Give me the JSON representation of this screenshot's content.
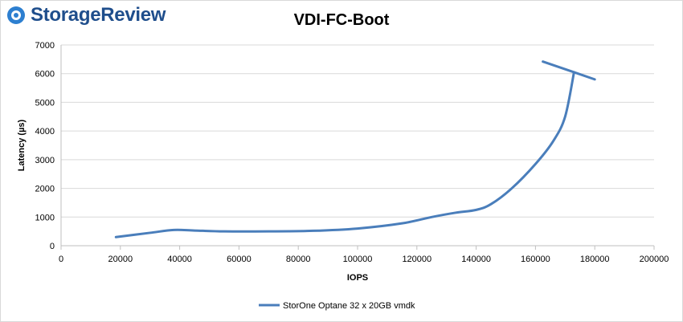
{
  "logo": {
    "text": "StorageReview",
    "brand_color": "#1f4e8c",
    "icon": "storagereview-logo-icon"
  },
  "chart_data": {
    "type": "line",
    "title": "VDI-FC-Boot",
    "xlabel": "IOPS",
    "ylabel": "Latency (µs)",
    "xlim": [
      0,
      200000
    ],
    "ylim": [
      0,
      7000
    ],
    "x_ticks": [
      0,
      20000,
      40000,
      60000,
      80000,
      100000,
      120000,
      140000,
      160000,
      180000,
      200000
    ],
    "y_ticks": [
      0,
      1000,
      2000,
      3000,
      4000,
      5000,
      6000,
      7000
    ],
    "grid": true,
    "legend_position": "bottom",
    "series": [
      {
        "name": "StorOne Optane 32 x 20GB vmdk",
        "color": "#4a7ebb",
        "points": [
          [
            18500,
            300
          ],
          [
            30000,
            450
          ],
          [
            38000,
            550
          ],
          [
            45000,
            530
          ],
          [
            55000,
            500
          ],
          [
            70000,
            500
          ],
          [
            85000,
            520
          ],
          [
            100000,
            600
          ],
          [
            115000,
            780
          ],
          [
            125000,
            1000
          ],
          [
            133000,
            1150
          ],
          [
            140000,
            1250
          ],
          [
            145000,
            1450
          ],
          [
            152000,
            2000
          ],
          [
            160000,
            2850
          ],
          [
            166000,
            3650
          ],
          [
            170000,
            4500
          ],
          [
            173000,
            6050
          ],
          [
            180000,
            5800
          ]
        ],
        "extra_segment": [
          [
            162500,
            6420
          ],
          [
            173000,
            6050
          ]
        ]
      }
    ]
  }
}
